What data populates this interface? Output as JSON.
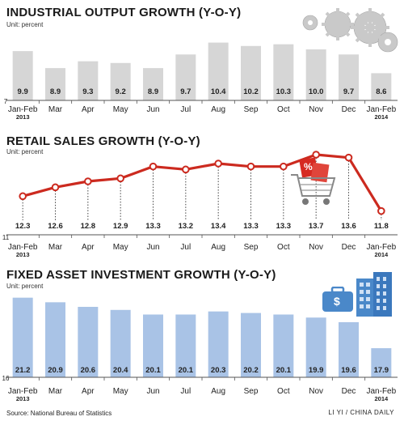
{
  "chart_data": [
    {
      "type": "bar",
      "title": "INDUSTRIAL OUTPUT GROWTH (Y-O-Y)",
      "unit_label": "Unit: percent",
      "axis_min_label": "7",
      "ylim": [
        7,
        11
      ],
      "categories": [
        {
          "main": "Jan-Feb",
          "sub": "2013"
        },
        {
          "main": "Mar",
          "sub": ""
        },
        {
          "main": "Apr",
          "sub": ""
        },
        {
          "main": "May",
          "sub": ""
        },
        {
          "main": "Jun",
          "sub": ""
        },
        {
          "main": "Jul",
          "sub": ""
        },
        {
          "main": "Aug",
          "sub": ""
        },
        {
          "main": "Sep",
          "sub": ""
        },
        {
          "main": "Oct",
          "sub": ""
        },
        {
          "main": "Nov",
          "sub": ""
        },
        {
          "main": "Dec",
          "sub": ""
        },
        {
          "main": "Jan-Feb",
          "sub": "2014"
        }
      ],
      "values": [
        9.9,
        8.9,
        9.3,
        9.2,
        8.9,
        9.7,
        10.4,
        10.2,
        10.3,
        10.0,
        9.7,
        8.6
      ],
      "value_labels": [
        "9.9",
        "8.9",
        "9.3",
        "9.2",
        "8.9",
        "9.7",
        "10.4",
        "10.2",
        "10.3",
        "10.0",
        "9.7",
        "8.6"
      ],
      "bar_color": "#d6d6d6"
    },
    {
      "type": "line",
      "title": "RETAIL SALES GROWTH (Y-O-Y)",
      "unit_label": "Unit: percent",
      "axis_min_label": "11",
      "ylim": [
        11,
        14
      ],
      "categories": [
        {
          "main": "Jan-Feb",
          "sub": "2013"
        },
        {
          "main": "Mar",
          "sub": ""
        },
        {
          "main": "Apr",
          "sub": ""
        },
        {
          "main": "May",
          "sub": ""
        },
        {
          "main": "Jun",
          "sub": ""
        },
        {
          "main": "Jul",
          "sub": ""
        },
        {
          "main": "Aug",
          "sub": ""
        },
        {
          "main": "Sep",
          "sub": ""
        },
        {
          "main": "Oct",
          "sub": ""
        },
        {
          "main": "Nov",
          "sub": ""
        },
        {
          "main": "Dec",
          "sub": ""
        },
        {
          "main": "Jan-Feb",
          "sub": "2014"
        }
      ],
      "values": [
        12.3,
        12.6,
        12.8,
        12.9,
        13.3,
        13.2,
        13.4,
        13.3,
        13.3,
        13.7,
        13.6,
        11.8
      ],
      "value_labels": [
        "12.3",
        "12.6",
        "12.8",
        "12.9",
        "13.3",
        "13.2",
        "13.4",
        "13.3",
        "13.3",
        "13.7",
        "13.6",
        "11.8"
      ],
      "line_color": "#cc2a1f",
      "marker_fill": "#ffffff"
    },
    {
      "type": "bar",
      "title": "FIXED ASSET INVESTMENT GROWTH (Y-O-Y)",
      "unit_label": "Unit: percent",
      "axis_min_label": "16",
      "ylim": [
        16,
        21.5
      ],
      "categories": [
        {
          "main": "Jan-Feb",
          "sub": "2013"
        },
        {
          "main": "Mar",
          "sub": ""
        },
        {
          "main": "Apr",
          "sub": ""
        },
        {
          "main": "May",
          "sub": ""
        },
        {
          "main": "Jun",
          "sub": ""
        },
        {
          "main": "Jul",
          "sub": ""
        },
        {
          "main": "Aug",
          "sub": ""
        },
        {
          "main": "Sep",
          "sub": ""
        },
        {
          "main": "Oct",
          "sub": ""
        },
        {
          "main": "Nov",
          "sub": ""
        },
        {
          "main": "Dec",
          "sub": ""
        },
        {
          "main": "Jan-Feb",
          "sub": "2014"
        }
      ],
      "values": [
        21.2,
        20.9,
        20.6,
        20.4,
        20.1,
        20.1,
        20.3,
        20.2,
        20.1,
        19.9,
        19.6,
        17.9
      ],
      "value_labels": [
        "21.2",
        "20.9",
        "20.6",
        "20.4",
        "20.1",
        "20.1",
        "20.3",
        "20.2",
        "20.1",
        "19.9",
        "19.6",
        "17.9"
      ],
      "bar_color": "#a9c3e6"
    }
  ],
  "decorations": {
    "gears_icon": "gears-icon",
    "cart_icon": "shopping-cart-icon",
    "cart_badge": "%",
    "briefcase_icon": "briefcase-icon",
    "briefcase_symbol": "$",
    "building_icon": "building-icon"
  },
  "footer": {
    "source": "Source: National Bureau of Statistics",
    "credit": "LI YI / CHINA DAILY"
  }
}
